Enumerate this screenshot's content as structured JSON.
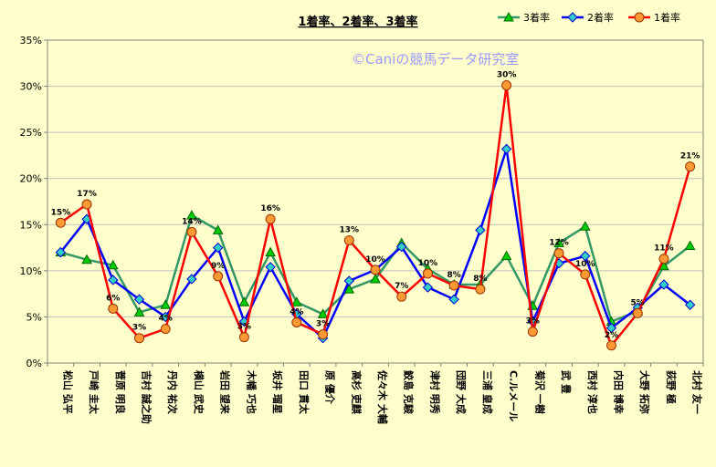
{
  "chart_data": {
    "type": "line",
    "title": "1着率、2着率、3着率",
    "watermark": "©Caniの競馬データ研究室",
    "y_ticks": [
      "0%",
      "5%",
      "10%",
      "15%",
      "20%",
      "25%",
      "30%",
      "35%"
    ],
    "ylim": [
      0,
      35
    ],
    "grid": true,
    "legend": "top-right",
    "categories": [
      "松山 弘平",
      "戸崎 圭太",
      "菅原 明良",
      "吉村 誠之助",
      "丹内 祐次",
      "横山 武史",
      "岩田 望来",
      "木幡 巧也",
      "坂井 瑠星",
      "田口 貫太",
      "原 優介",
      "高杉 吏麒",
      "佐々木 大輔",
      "鮫島 克駿",
      "津村 明秀",
      "団野 大成",
      "三浦 皇成",
      "C.ルメール",
      "菊沢 一樹",
      "武 豊",
      "西村 淳也",
      "内田 博幸",
      "大野 拓弥",
      "荻野 極",
      "北村 友一"
    ],
    "series": [
      {
        "name": "3着率",
        "color": "#339966",
        "marker": "triangle",
        "marker_color": "#00cc00",
        "values": [
          12.0,
          11.2,
          10.6,
          5.5,
          6.3,
          16.0,
          14.4,
          6.6,
          12.0,
          6.6,
          5.3,
          8.0,
          9.1,
          13.0,
          10.2,
          8.5,
          8.5,
          11.6,
          6.2,
          13.0,
          14.8,
          4.5,
          5.6,
          10.5,
          12.7
        ]
      },
      {
        "name": "2着率",
        "color": "#0000ff",
        "marker": "diamond",
        "marker_color": "#33cccc",
        "values": [
          12.0,
          15.6,
          9.0,
          6.9,
          5.0,
          9.1,
          12.5,
          4.5,
          10.4,
          5.3,
          2.7,
          8.9,
          10.1,
          12.6,
          8.2,
          6.9,
          14.4,
          23.2,
          4.5,
          10.8,
          11.6,
          3.8,
          6.0,
          8.5,
          6.3
        ]
      },
      {
        "name": "1着率",
        "color": "#ff0000",
        "marker": "circle",
        "marker_color": "#ff9933",
        "values": [
          15.2,
          17.2,
          5.9,
          2.7,
          3.7,
          14.2,
          9.4,
          2.8,
          15.6,
          4.4,
          3.1,
          13.3,
          10.1,
          7.2,
          9.7,
          8.4,
          8.0,
          30.1,
          3.4,
          11.9,
          9.6,
          1.9,
          5.4,
          11.3,
          21.3
        ]
      }
    ],
    "data_labels": [
      "15%",
      "17%",
      "6%",
      "3%",
      "4%",
      "14%",
      "9%",
      "3%",
      "16%",
      "4%",
      "3%",
      "13%",
      "10%",
      "7%",
      "10%",
      "8%",
      "8%",
      "30%",
      "3%",
      "12%",
      "10%",
      "2%",
      "5%",
      "11%",
      "21%"
    ]
  }
}
